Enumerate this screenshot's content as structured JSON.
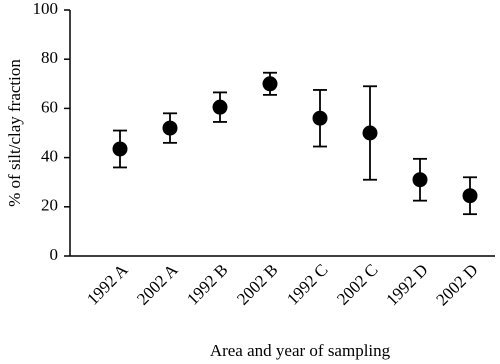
{
  "chart_data": {
    "type": "errorbar",
    "x_label": "Area and year of sampling",
    "y_label": "% of silt/clay fraction",
    "categories": [
      "1992 A",
      "2002 A",
      "1992 B",
      "2002 B",
      "1992 C",
      "2002 C",
      "1992 D",
      "2002 D"
    ],
    "values": [
      43.5,
      52,
      60.5,
      70,
      56,
      50,
      31,
      24.5
    ],
    "errors": [
      7.5,
      6,
      6,
      4.5,
      11.5,
      19,
      8.5,
      7.5
    ],
    "color": "#000000",
    "ylim": [
      0,
      100
    ],
    "yticks": [
      0,
      20,
      40,
      60,
      80,
      100
    ],
    "grid": false
  }
}
